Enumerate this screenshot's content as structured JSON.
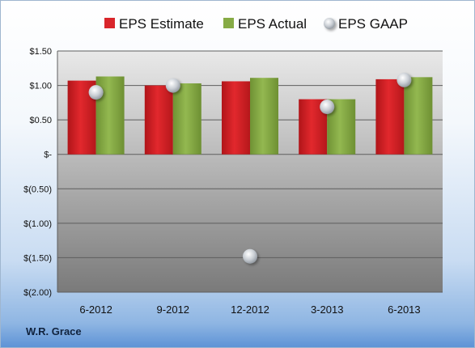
{
  "chart_data": {
    "type": "bar",
    "categories": [
      "6-2012",
      "9-2012",
      "12-2012",
      "3-2013",
      "6-2013"
    ],
    "series": [
      {
        "name": "EPS Estimate",
        "kind": "bar",
        "color": "#d9262b",
        "values": [
          1.07,
          1.0,
          1.06,
          0.8,
          1.09
        ]
      },
      {
        "name": "EPS Actual",
        "kind": "bar",
        "color": "#86ab45",
        "values": [
          1.13,
          1.03,
          1.11,
          0.8,
          1.12
        ]
      },
      {
        "name": "EPS GAAP",
        "kind": "marker",
        "color": "#cfd5db",
        "values": [
          0.9,
          1.0,
          -1.48,
          0.69,
          1.08
        ]
      }
    ],
    "yticks": [
      {
        "value": 1.5,
        "label": "$1.50"
      },
      {
        "value": 1.0,
        "label": "$1.00"
      },
      {
        "value": 0.5,
        "label": "$0.50"
      },
      {
        "value": 0.0,
        "label": "$-"
      },
      {
        "value": -0.5,
        "label": "$(0.50)"
      },
      {
        "value": -1.0,
        "label": "$(1.00)"
      },
      {
        "value": -1.5,
        "label": "$(1.50)"
      },
      {
        "value": -2.0,
        "label": "$(2.00)"
      }
    ],
    "ylim": [
      -2.0,
      1.5
    ],
    "grid": true,
    "legend": "top",
    "title": "",
    "xlabel": "",
    "ylabel": ""
  },
  "footer": {
    "company": "W.R. Grace"
  }
}
